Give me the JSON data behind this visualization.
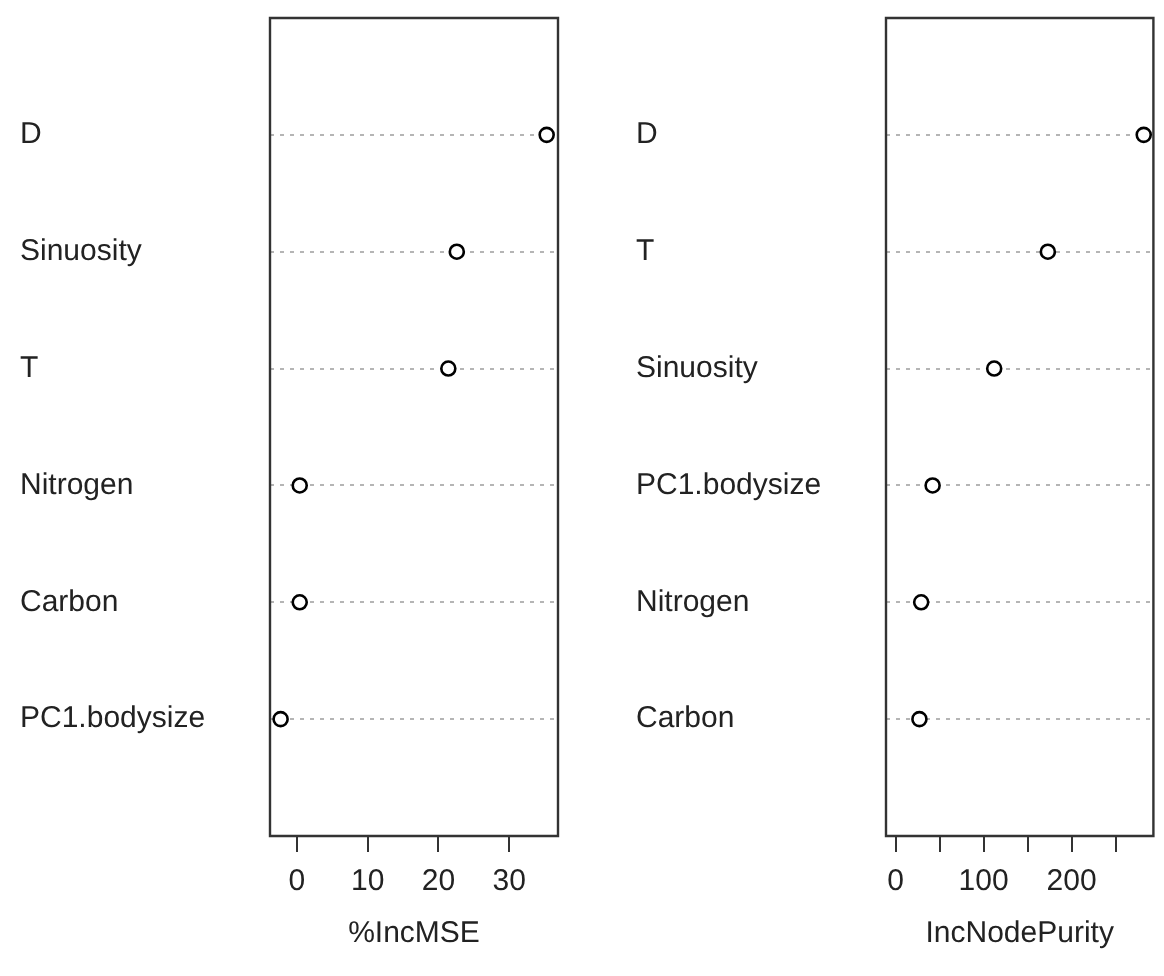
{
  "chart_data": [
    {
      "type": "scatter",
      "orientation": "horizontal",
      "categories": [
        "D",
        "Sinuosity",
        "T",
        "Nitrogen",
        "Carbon",
        "PC1.bodysize"
      ],
      "values": [
        35.3,
        22.6,
        21.4,
        0.4,
        0.4,
        -2.3
      ],
      "color": "#000000",
      "marker": "circle",
      "xlabel": "%IncMSE",
      "xlim": [
        -3.8,
        36.9
      ],
      "xticks": [
        0,
        10,
        20,
        30
      ],
      "grid": "y"
    },
    {
      "type": "scatter",
      "orientation": "horizontal",
      "categories": [
        "D",
        "T",
        "Sinuosity",
        "PC1.bodysize",
        "Nitrogen",
        "Carbon"
      ],
      "values": [
        282,
        173,
        112,
        42,
        29,
        27
      ],
      "color": "#000000",
      "marker": "circle",
      "xlabel": "IncNodePurity",
      "xlim": [
        -11,
        293
      ],
      "xticks": [
        0,
        {
          "value": 50,
          "label": null
        },
        100,
        {
          "value": 150,
          "label": null
        },
        200,
        {
          "value": 250,
          "label": null
        }
      ],
      "grid": "y"
    }
  ]
}
